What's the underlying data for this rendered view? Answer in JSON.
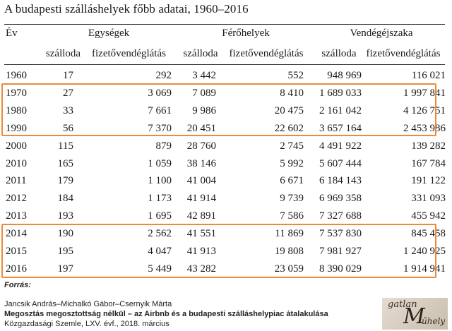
{
  "title": "A budapesti szálláshelyek főbb adatai, 1960–2016",
  "header": {
    "year": "Év",
    "groups": [
      "Egységek",
      "Férőhelyek",
      "Vendégéjszaka"
    ],
    "sub": [
      "szálloda",
      "fizetővendéglátás",
      "szálloda",
      "fizetővendéglátás",
      "szálloda",
      "fizetővendéglátás"
    ]
  },
  "rows": [
    {
      "year": "1960",
      "cells": [
        "17",
        "292",
        "3 442",
        "552",
        "948 969",
        "116 021"
      ]
    },
    {
      "year": "1970",
      "cells": [
        "27",
        "3 069",
        "7 089",
        "8 410",
        "1 689 033",
        "1 997 841"
      ]
    },
    {
      "year": "1980",
      "cells": [
        "33",
        "7 661",
        "9 986",
        "20 475",
        "2 161 042",
        "4 126 751"
      ]
    },
    {
      "year": "1990",
      "cells": [
        "56",
        "7 370",
        "20 451",
        "22 602",
        "3 657 164",
        "2 453 986"
      ]
    },
    {
      "year": "2000",
      "cells": [
        "115",
        "879",
        "28 760",
        "2 745",
        "4 491 922",
        "139 282"
      ]
    },
    {
      "year": "2010",
      "cells": [
        "165",
        "1 059",
        "38 146",
        "5 992",
        "5 607 444",
        "167 784"
      ]
    },
    {
      "year": "2011",
      "cells": [
        "179",
        "1 100",
        "41 004",
        "6 671",
        "6 184 143",
        "191 122"
      ]
    },
    {
      "year": "2012",
      "cells": [
        "184",
        "1 173",
        "41 914",
        "9 739",
        "6 969 358",
        "331 093"
      ]
    },
    {
      "year": "2013",
      "cells": [
        "193",
        "1 695",
        "42 891",
        "7 586",
        "7 327 688",
        "455 942"
      ]
    },
    {
      "year": "2014",
      "cells": [
        "190",
        "2 562",
        "41 551",
        "11 869",
        "7 537 830",
        "845 458"
      ]
    },
    {
      "year": "2015",
      "cells": [
        "195",
        "4 047",
        "41 913",
        "19 808",
        "7 981 927",
        "1 240 925"
      ]
    },
    {
      "year": "2016",
      "cells": [
        "197",
        "5 449",
        "43 282",
        "23 059",
        "8 390 029",
        "1 914 941"
      ]
    }
  ],
  "source": {
    "label": "Forrás:",
    "authors": "Jancsik András–Michalkó Gábor–Csernyik Márta",
    "article": "Megosztás megosztottság nélkül – az Airbnb és a budapesti szálláshelypiac átalakulása",
    "journal": "Közgazdasági Szemle, LXV. évf., 2018. március"
  },
  "logo": {
    "top": "gatlan",
    "letter": "M",
    "bottom": "űhely"
  },
  "colors": {
    "highlight": "#ec8a3a",
    "text": "#1a1a1a"
  }
}
